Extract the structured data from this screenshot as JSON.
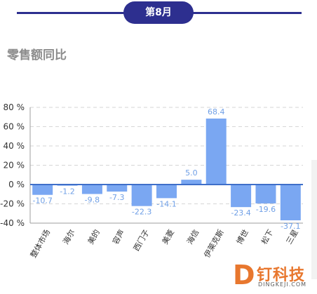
{
  "header": {
    "month_label": "第8月"
  },
  "chart_data": {
    "type": "bar",
    "title": "零售额同比",
    "categories": [
      "整体市场",
      "海尔",
      "美的",
      "容声",
      "西门子",
      "美菱",
      "海信",
      "伊莱克斯",
      "博世",
      "松下",
      "三星"
    ],
    "values": [
      -10.7,
      -1.2,
      -9.8,
      -7.3,
      -22.3,
      -14.1,
      5.0,
      68.4,
      -23.4,
      -19.6,
      -37.1
    ],
    "value_labels": [
      "-10.7",
      "-1.2",
      "-9.8",
      "-7.3",
      "-22.3",
      "-14.1",
      "5.0",
      "68.4",
      "-23.4",
      "-19.6",
      "-37.1"
    ],
    "ylim": [
      -40,
      80
    ],
    "yticks": [
      -40,
      -20,
      0,
      20,
      40,
      60,
      80
    ],
    "ytick_labels": [
      "-40 %",
      "-20 %",
      "0 %",
      "20 %",
      "40 %",
      "60 %",
      "80 %"
    ],
    "grid": true,
    "colors": {
      "bar": "#7aa7f2",
      "label": "#6f9fe6",
      "zero_line": "#3f6fc9",
      "grid": "#d6d6d6"
    }
  },
  "watermark": {
    "logo_letter": "D",
    "name": "钉科技",
    "domain": "DINGKEJI.COM"
  }
}
